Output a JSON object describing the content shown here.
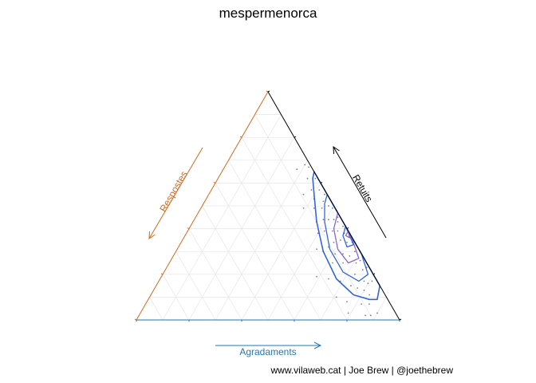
{
  "chart_data": {
    "type": "scatter",
    "title": "mespermenorca",
    "caption": "www.vilaweb.cat | Joe Brew | @joethebrew",
    "axes": {
      "bottom": {
        "label": "Agradaments",
        "color": "#1f77b4"
      },
      "left": {
        "label": "Respostes",
        "color": "#d2691e"
      },
      "right": {
        "label": "Retuits",
        "color": "#000000"
      }
    },
    "grid": true,
    "gridlines": 10,
    "colors": {
      "points": "#555555",
      "contour_outer": "#3366dd",
      "contour_inner": "#8866cc"
    },
    "composition_order": [
      "Agradaments",
      "Respostes",
      "Retuits"
    ],
    "points": [
      [
        0.52,
        0.0,
        0.48
      ],
      [
        0.5,
        0.01,
        0.49
      ],
      [
        0.55,
        0.02,
        0.43
      ],
      [
        0.48,
        0.02,
        0.5
      ],
      [
        0.53,
        0.03,
        0.44
      ],
      [
        0.58,
        0.01,
        0.41
      ],
      [
        0.6,
        0.02,
        0.38
      ],
      [
        0.45,
        0.03,
        0.52
      ],
      [
        0.62,
        0.0,
        0.38
      ],
      [
        0.57,
        0.04,
        0.39
      ],
      [
        0.51,
        0.05,
        0.44
      ],
      [
        0.65,
        0.01,
        0.34
      ],
      [
        0.46,
        0.05,
        0.49
      ],
      [
        0.63,
        0.03,
        0.34
      ],
      [
        0.55,
        0.06,
        0.39
      ],
      [
        0.68,
        0.02,
        0.3
      ],
      [
        0.49,
        0.07,
        0.44
      ],
      [
        0.6,
        0.05,
        0.35
      ],
      [
        0.7,
        0.0,
        0.3
      ],
      [
        0.58,
        0.08,
        0.34
      ],
      [
        0.72,
        0.02,
        0.26
      ],
      [
        0.64,
        0.07,
        0.29
      ],
      [
        0.66,
        0.09,
        0.25
      ],
      [
        0.75,
        0.03,
        0.22
      ],
      [
        0.52,
        0.09,
        0.39
      ],
      [
        0.78,
        0.05,
        0.17
      ],
      [
        0.8,
        0.04,
        0.16
      ],
      [
        0.47,
        0.1,
        0.43
      ],
      [
        0.62,
        0.13,
        0.25
      ],
      [
        0.74,
        0.11,
        0.15
      ],
      [
        0.56,
        0.14,
        0.3
      ],
      [
        0.69,
        0.14,
        0.17
      ],
      [
        0.8,
        0.07,
        0.13
      ],
      [
        0.83,
        0.06,
        0.11
      ],
      [
        0.85,
        0.08,
        0.07
      ],
      [
        0.82,
        0.11,
        0.07
      ],
      [
        0.71,
        0.19,
        0.1
      ],
      [
        0.76,
        0.16,
        0.08
      ],
      [
        0.64,
        0.18,
        0.18
      ],
      [
        0.59,
        0.22,
        0.19
      ],
      [
        0.86,
        0.12,
        0.02
      ],
      [
        0.79,
        0.18,
        0.03
      ],
      [
        0.88,
        0.1,
        0.02
      ],
      [
        0.9,
        0.07,
        0.03
      ],
      [
        0.3,
        0.02,
        0.68
      ],
      [
        0.34,
        0.04,
        0.62
      ],
      [
        0.38,
        0.05,
        0.57
      ],
      [
        0.36,
        0.09,
        0.55
      ],
      [
        0.41,
        0.06,
        0.53
      ],
      [
        0.44,
        0.01,
        0.55
      ],
      [
        0.28,
        0.06,
        0.66
      ],
      [
        0.32,
        0.01,
        0.67
      ],
      [
        0.39,
        0.12,
        0.49
      ],
      [
        0.43,
        0.08,
        0.49
      ],
      [
        0.53,
        0.16,
        0.31
      ],
      [
        0.57,
        0.11,
        0.32
      ],
      [
        0.61,
        0.1,
        0.29
      ],
      [
        0.5,
        0.12,
        0.38
      ],
      [
        0.67,
        0.05,
        0.28
      ],
      [
        0.73,
        0.07,
        0.2
      ],
      [
        0.77,
        0.09,
        0.14
      ],
      [
        0.81,
        0.02,
        0.17
      ],
      [
        0.54,
        0.01,
        0.45
      ],
      [
        0.47,
        0.0,
        0.53
      ],
      [
        0.59,
        0.0,
        0.41
      ],
      [
        0.66,
        0.0,
        0.34
      ],
      [
        0.71,
        0.04,
        0.25
      ],
      [
        0.76,
        0.01,
        0.23
      ],
      [
        0.41,
        0.02,
        0.57
      ],
      [
        0.37,
        0.01,
        0.62
      ]
    ],
    "contours": [
      [
        [
          0.35,
          0.0,
          0.65
        ],
        [
          0.46,
          0.0,
          0.54
        ],
        [
          0.6,
          0.0,
          0.4
        ],
        [
          0.72,
          0.0,
          0.28
        ],
        [
          0.85,
          0.0,
          0.15
        ],
        [
          0.87,
          0.04,
          0.09
        ],
        [
          0.84,
          0.07,
          0.09
        ],
        [
          0.77,
          0.12,
          0.11
        ],
        [
          0.67,
          0.15,
          0.18
        ],
        [
          0.56,
          0.14,
          0.3
        ],
        [
          0.47,
          0.1,
          0.43
        ],
        [
          0.4,
          0.05,
          0.55
        ],
        [
          0.36,
          0.02,
          0.62
        ]
      ],
      [
        [
          0.45,
          0.0,
          0.55
        ],
        [
          0.58,
          0.0,
          0.42
        ],
        [
          0.71,
          0.0,
          0.29
        ],
        [
          0.78,
          0.02,
          0.2
        ],
        [
          0.76,
          0.07,
          0.17
        ],
        [
          0.68,
          0.11,
          0.21
        ],
        [
          0.58,
          0.11,
          0.31
        ],
        [
          0.5,
          0.07,
          0.43
        ],
        [
          0.46,
          0.03,
          0.51
        ]
      ],
      [
        [
          0.53,
          0.0,
          0.47
        ],
        [
          0.63,
          0.0,
          0.37
        ],
        [
          0.71,
          0.02,
          0.27
        ],
        [
          0.68,
          0.07,
          0.25
        ],
        [
          0.61,
          0.08,
          0.31
        ],
        [
          0.55,
          0.05,
          0.4
        ]
      ],
      [
        [
          0.59,
          0.0,
          0.41
        ],
        [
          0.66,
          0.01,
          0.33
        ],
        [
          0.64,
          0.04,
          0.32
        ],
        [
          0.6,
          0.03,
          0.37
        ]
      ],
      [
        [
          0.61,
          0.0,
          0.39
        ],
        [
          0.63,
          0.01,
          0.36
        ],
        [
          0.61,
          0.02,
          0.37
        ]
      ]
    ]
  }
}
